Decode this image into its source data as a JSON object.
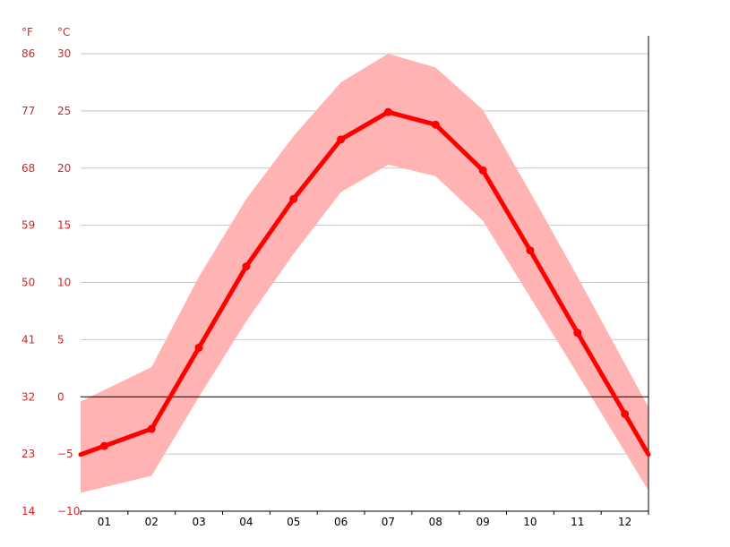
{
  "chart_data": {
    "type": "line",
    "title": "",
    "xlabel": "",
    "ylabel": "",
    "unit_left": "°F",
    "unit_right": "°C",
    "categories": [
      "01",
      "02",
      "03",
      "04",
      "05",
      "06",
      "07",
      "08",
      "09",
      "10",
      "11",
      "12"
    ],
    "ylim": [
      -10,
      30
    ],
    "yticks_c": [
      30,
      25,
      20,
      15,
      10,
      5,
      0,
      -5,
      -10
    ],
    "yticks_c_labels": [
      "30",
      "25",
      "20",
      "15",
      "10",
      "5",
      "0",
      "−5",
      "−10"
    ],
    "yticks_f_labels": [
      "86",
      "77",
      "68",
      "59",
      "50",
      "41",
      "32",
      "23",
      "14"
    ],
    "series": [
      {
        "values": [
          -4.3,
          -2.8,
          4.3,
          11.4,
          17.3,
          22.5,
          24.9,
          23.8,
          19.8,
          12.8,
          5.6,
          -1.5
        ]
      }
    ],
    "band": {
      "min": [
        -7.9,
        -6.9,
        0.0,
        6.6,
        12.5,
        17.9,
        20.3,
        19.3,
        15.4,
        8.7,
        2.0,
        -4.8
      ],
      "max": [
        0.6,
        2.6,
        10.5,
        17.3,
        22.8,
        27.5,
        30.0,
        28.8,
        25.1,
        17.9,
        10.5,
        2.9
      ]
    },
    "grid": true,
    "colors": {
      "line": "#ff0000",
      "band": "#ffb3b3",
      "axis_text": "#e02020",
      "grid": "#c8c8c8",
      "zero": "#000000"
    }
  }
}
